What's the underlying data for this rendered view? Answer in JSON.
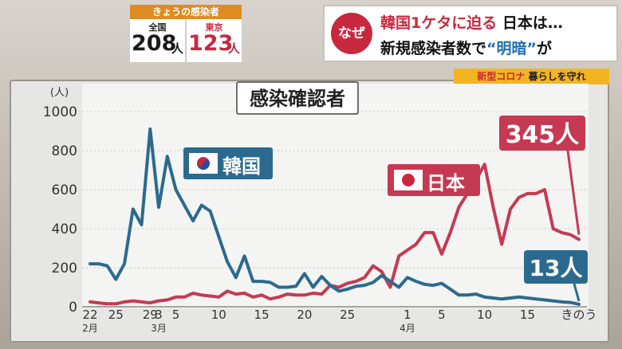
{
  "today": {
    "title": "きょうの感染者",
    "national": {
      "label": "全国",
      "value": "208",
      "unit": "人"
    },
    "tokyo": {
      "label": "東京",
      "value": "123",
      "unit": "人"
    }
  },
  "headline": {
    "badge": "なぜ",
    "line1_red": "韓国1ケタに迫る",
    "line1_rest": " 日本は…",
    "line2_pre": "新規感染者数で",
    "line2_blue": "“明暗”",
    "line2_post": "が"
  },
  "tag": {
    "red": "新型コロナ",
    "rest": " 暮らしを守れ"
  },
  "chart_data": {
    "type": "line",
    "title": "感染確認者",
    "ylabel": "(人)",
    "ylim": [
      0,
      1000
    ],
    "yticks": [
      "0",
      "200",
      "400",
      "600",
      "800",
      "1000"
    ],
    "grid": true,
    "xtick_labels": [
      {
        "label": "22",
        "i": 0
      },
      {
        "label": "2月",
        "i": 0,
        "row": 2
      },
      {
        "label": "25",
        "i": 3
      },
      {
        "label": "29",
        "i": 7
      },
      {
        "label": "3",
        "i": 8
      },
      {
        "label": "3月",
        "i": 8,
        "row": 2
      },
      {
        "label": "5",
        "i": 10
      },
      {
        "label": "10",
        "i": 15
      },
      {
        "label": "15",
        "i": 20
      },
      {
        "label": "20",
        "i": 25
      },
      {
        "label": "25",
        "i": 30
      },
      {
        "label": "1",
        "i": 37
      },
      {
        "label": "4月",
        "i": 37,
        "row": 2
      },
      {
        "label": "5",
        "i": 41
      },
      {
        "label": "10",
        "i": 46
      },
      {
        "label": "15",
        "i": 51
      },
      {
        "label": "きのう",
        "i": 57
      }
    ],
    "series": [
      {
        "name": "韓国",
        "flag": "korea",
        "color": "#2b6a8e",
        "end_label": "13人",
        "values": [
          220,
          220,
          210,
          140,
          220,
          500,
          420,
          910,
          510,
          770,
          600,
          520,
          440,
          520,
          490,
          360,
          230,
          150,
          260,
          130,
          130,
          125,
          100,
          100,
          105,
          170,
          100,
          155,
          110,
          80,
          90,
          105,
          110,
          125,
          160,
          130,
          100,
          150,
          130,
          115,
          110,
          120,
          90,
          60,
          60,
          65,
          50,
          45,
          40,
          45,
          50,
          45,
          40,
          35,
          30,
          25,
          22,
          13
        ]
      },
      {
        "name": "日本",
        "flag": "japan",
        "color": "#c53a52",
        "end_label": "345人",
        "values": [
          25,
          20,
          15,
          15,
          25,
          30,
          25,
          20,
          30,
          35,
          50,
          50,
          70,
          60,
          55,
          50,
          80,
          65,
          70,
          50,
          60,
          40,
          50,
          65,
          60,
          60,
          70,
          65,
          110,
          100,
          120,
          130,
          150,
          210,
          180,
          100,
          260,
          290,
          320,
          380,
          380,
          270,
          380,
          510,
          580,
          650,
          730,
          510,
          320,
          500,
          560,
          580,
          580,
          600,
          400,
          380,
          370,
          345
        ]
      }
    ]
  }
}
